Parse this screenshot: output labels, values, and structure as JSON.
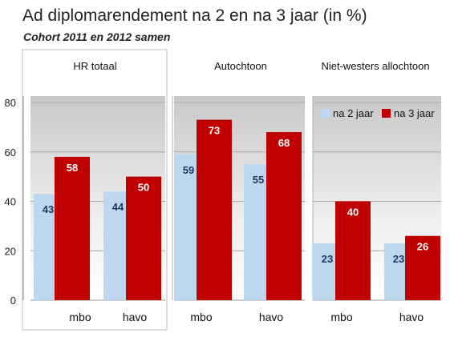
{
  "chart_data": {
    "type": "bar",
    "title": "Ad diplomarendement na 2 en na 3 jaar (in %)",
    "subtitle": "Cohort 2011 en 2012 samen",
    "ylim": [
      0,
      80
    ],
    "yticks": [
      0,
      20,
      40,
      60,
      80
    ],
    "grid": true,
    "legend_position": "top-right",
    "colors": {
      "na 2 jaar": "#bdd7ee",
      "na 3 jaar": "#c00000"
    },
    "label_colors": {
      "na 2 jaar": "#1f3864",
      "na 3 jaar": "#ffffff"
    },
    "panels": [
      {
        "title": "HR totaal",
        "categories": [
          "mbo",
          "havo"
        ],
        "series": [
          {
            "name": "na 2 jaar",
            "values": [
              43,
              44
            ]
          },
          {
            "name": "na 3 jaar",
            "values": [
              58,
              50
            ]
          }
        ]
      },
      {
        "title": "Autochtoon",
        "categories": [
          "mbo",
          "havo"
        ],
        "series": [
          {
            "name": "na 2 jaar",
            "values": [
              59,
              55
            ]
          },
          {
            "name": "na 3 jaar",
            "values": [
              73,
              68
            ]
          }
        ]
      },
      {
        "title": "Niet-westers allochtoon",
        "categories": [
          "mbo",
          "havo"
        ],
        "series": [
          {
            "name": "na 2 jaar",
            "values": [
              23,
              23
            ]
          },
          {
            "name": "na 3 jaar",
            "values": [
              40,
              26
            ]
          }
        ]
      }
    ]
  }
}
